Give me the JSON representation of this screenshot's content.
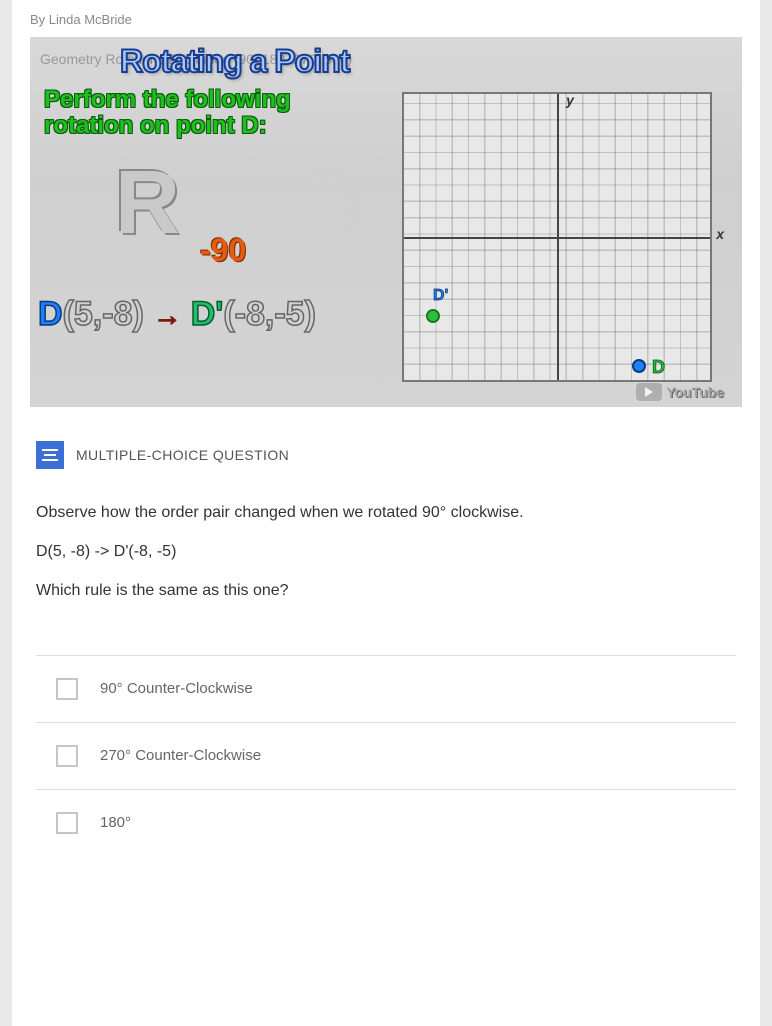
{
  "byline": "By Linda McBride",
  "video": {
    "geom_label": "Geometry Rotations Explained (90, 180, 270, 360)",
    "title": "Rotating a Point",
    "instruction_l1": "Perform the following",
    "instruction_l2": "rotation on point D:",
    "rotation_letter": "R",
    "rotation_sub": "-90",
    "mapping": {
      "d_label": "D",
      "d_coords": "(5,-8)",
      "arrow": "→",
      "dprime_label": "D'",
      "dprime_coords": "(-8,-5)"
    },
    "grid": {
      "point_d_prime_label": "D'",
      "point_d_label": "D",
      "y_axis": "y",
      "x_axis": "x"
    },
    "watermark": "YouTube"
  },
  "question": {
    "section_title": "MULTIPLE-CHOICE QUESTION",
    "line1": "Observe how the order pair changed when we rotated 90° clockwise.",
    "line2": "D(5, -8) -> D'(-8, -5)",
    "line3": "Which rule is the same as this one?",
    "choices": [
      "90° Counter-Clockwise",
      "270° Counter-Clockwise",
      "180°"
    ]
  },
  "colors": {
    "accent_blue": "#3b6fd6",
    "green": "#1fbf1f",
    "orange": "#e85a0f",
    "point_blue": "#1f7fff",
    "point_green": "#2fbf3f"
  }
}
